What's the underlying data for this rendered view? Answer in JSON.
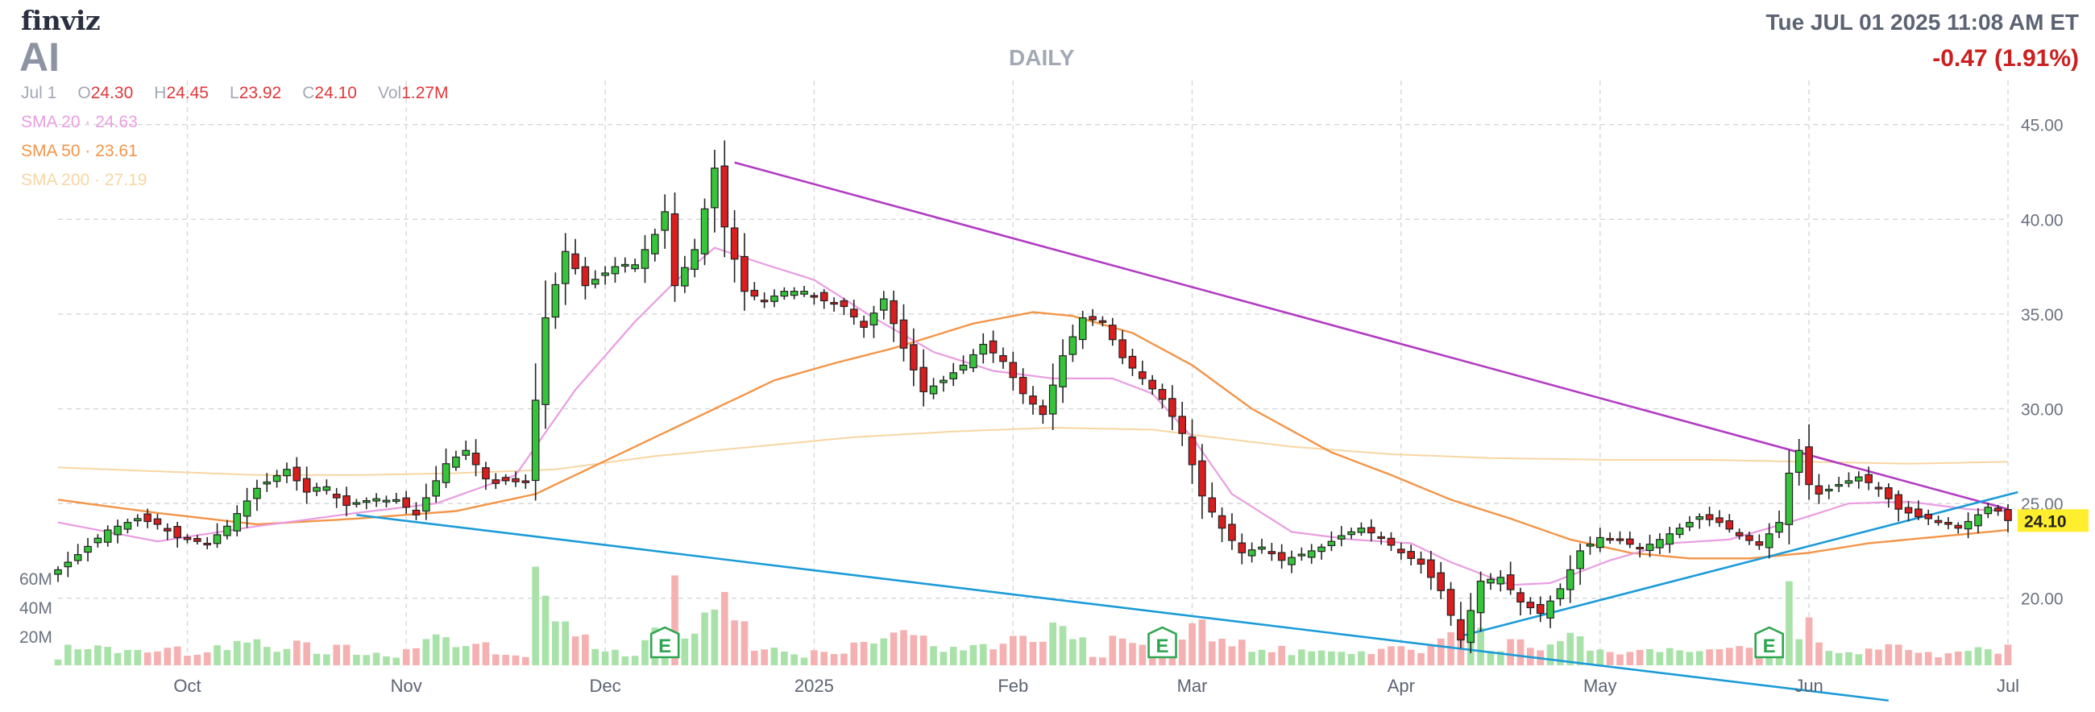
{
  "header": {
    "logo": "finviz",
    "ticker": "AI",
    "period": "DAILY",
    "datetime": "Tue JUL 01 2025 11:08 AM ET",
    "change": "-0.47 (1.91%)"
  },
  "ohlc": {
    "date": "Jul 1",
    "open_label": "O",
    "open": "24.30",
    "high_label": "H",
    "high": "24.45",
    "low_label": "L",
    "low": "23.92",
    "close_label": "C",
    "close": "24.10",
    "vol_label": "Vol",
    "vol": "1.27M"
  },
  "legend": {
    "sma20": "SMA 20 · 24.63",
    "sma50": "SMA 50 · 23.61",
    "sma200": "SMA 200 · 27.19"
  },
  "colors": {
    "up": "#36c43a",
    "down": "#d81e1e",
    "vol_up": "#a9e2a9",
    "vol_down": "#f5b1b1",
    "sma20": "#e99de0",
    "sma50": "#f39548",
    "sma200": "#f7d6a3",
    "trend_upper": "#b23bc3",
    "trend_lower": "#1a9bd8",
    "earnings": "#2da650",
    "last_price_bg": "#ffee2d",
    "grid": "#d4d7dc"
  },
  "chart_data": {
    "type": "candlestick",
    "y_ticks": [
      "45.00",
      "40.00",
      "35.00",
      "30.00",
      "25.00",
      "20.00"
    ],
    "y_tick_values": [
      45,
      40,
      35,
      30,
      25,
      20
    ],
    "ylim": [
      16.8,
      46.9
    ],
    "last_price": "24.10",
    "last_price_value": 24.1,
    "volume_ticks": [
      "60M",
      "40M",
      "20M"
    ],
    "volume_tick_values": [
      60,
      40,
      20
    ],
    "volume_max": 70,
    "x_labels": [
      "Oct",
      "Nov",
      "Dec",
      "2025",
      "Feb",
      "Mar",
      "Apr",
      "May",
      "Jun",
      "Jul"
    ],
    "x_label_index": [
      13,
      35,
      55,
      76,
      96,
      114,
      135,
      155,
      176,
      196
    ],
    "earnings_marker": "E",
    "earnings_index": [
      61,
      111,
      172
    ],
    "n_days": 197,
    "ohlc_points": [
      [
        0,
        21.5
      ],
      [
        2,
        22.3
      ],
      [
        5,
        23.6
      ],
      [
        8,
        24.2
      ],
      [
        10,
        23.9
      ],
      [
        12,
        23.2
      ],
      [
        15,
        22.9
      ],
      [
        17,
        23.8
      ],
      [
        20,
        25.8
      ],
      [
        23,
        26.8
      ],
      [
        25,
        25.6
      ],
      [
        27,
        25.7
      ],
      [
        29,
        24.9
      ],
      [
        31,
        25.1
      ],
      [
        34,
        25.2
      ],
      [
        36,
        24.4
      ],
      [
        39,
        27.1
      ],
      [
        41,
        27.8
      ],
      [
        43,
        26.3
      ],
      [
        45,
        26.2
      ],
      [
        47,
        26.1
      ],
      [
        49,
        34.8
      ],
      [
        51,
        38.3
      ],
      [
        53,
        36.5
      ],
      [
        56,
        37.5
      ],
      [
        58,
        37.6
      ],
      [
        60,
        39.2
      ],
      [
        61,
        40.4
      ],
      [
        62,
        36.5
      ],
      [
        64,
        38.4
      ],
      [
        66,
        42.7
      ],
      [
        67,
        39.6
      ],
      [
        69,
        36.2
      ],
      [
        71,
        35.7
      ],
      [
        73,
        36.2
      ],
      [
        75,
        36.2
      ],
      [
        77,
        35.7
      ],
      [
        79,
        35.4
      ],
      [
        81,
        34.3
      ],
      [
        83,
        35.8
      ],
      [
        85,
        33.2
      ],
      [
        87,
        30.9
      ],
      [
        89,
        31.5
      ],
      [
        91,
        32.3
      ],
      [
        93,
        33.4
      ],
      [
        95,
        32.5
      ],
      [
        97,
        30.8
      ],
      [
        99,
        29.7
      ],
      [
        101,
        32.8
      ],
      [
        103,
        34.8
      ],
      [
        105,
        34.6
      ],
      [
        107,
        32.7
      ],
      [
        109,
        31.6
      ],
      [
        111,
        30.5
      ],
      [
        113,
        28.7
      ],
      [
        115,
        25.4
      ],
      [
        117,
        23.7
      ],
      [
        119,
        22.4
      ],
      [
        121,
        22.7
      ],
      [
        123,
        22.0
      ],
      [
        125,
        22.3
      ],
      [
        127,
        22.7
      ],
      [
        129,
        23.3
      ],
      [
        131,
        23.7
      ],
      [
        133,
        23.2
      ],
      [
        135,
        22.4
      ],
      [
        137,
        21.8
      ],
      [
        139,
        20.4
      ],
      [
        141,
        17.8
      ],
      [
        143,
        20.9
      ],
      [
        145,
        21.1
      ],
      [
        147,
        19.8
      ],
      [
        149,
        19.2
      ],
      [
        151,
        20.5
      ],
      [
        153,
        22.5
      ],
      [
        155,
        23.2
      ],
      [
        157,
        23.1
      ],
      [
        159,
        22.6
      ],
      [
        161,
        23.1
      ],
      [
        163,
        23.7
      ],
      [
        165,
        24.3
      ],
      [
        167,
        24.0
      ],
      [
        169,
        23.3
      ],
      [
        171,
        22.8
      ],
      [
        173,
        24.0
      ],
      [
        174,
        26.6
      ],
      [
        175,
        27.8
      ],
      [
        176,
        26.0
      ],
      [
        177,
        25.5
      ],
      [
        179,
        26.0
      ],
      [
        181,
        26.4
      ],
      [
        183,
        25.8
      ],
      [
        185,
        24.7
      ],
      [
        187,
        24.3
      ],
      [
        189,
        24.1
      ],
      [
        191,
        23.7
      ],
      [
        193,
        24.4
      ],
      [
        194,
        24.8
      ],
      [
        195,
        24.6
      ],
      [
        196,
        24.1
      ]
    ],
    "sma20_points": [
      [
        0,
        24.0
      ],
      [
        10,
        23.0
      ],
      [
        20,
        23.8
      ],
      [
        30,
        24.5
      ],
      [
        38,
        25.0
      ],
      [
        46,
        26.5
      ],
      [
        52,
        31.0
      ],
      [
        58,
        34.6
      ],
      [
        62,
        36.7
      ],
      [
        66,
        38.5
      ],
      [
        70,
        37.8
      ],
      [
        76,
        36.8
      ],
      [
        82,
        34.8
      ],
      [
        88,
        33.0
      ],
      [
        94,
        32.0
      ],
      [
        100,
        31.6
      ],
      [
        106,
        31.6
      ],
      [
        110,
        30.8
      ],
      [
        114,
        28.5
      ],
      [
        118,
        25.5
      ],
      [
        124,
        23.5
      ],
      [
        130,
        23.1
      ],
      [
        136,
        22.9
      ],
      [
        140,
        21.9
      ],
      [
        146,
        20.7
      ],
      [
        150,
        20.8
      ],
      [
        156,
        22.0
      ],
      [
        162,
        22.9
      ],
      [
        168,
        23.1
      ],
      [
        174,
        24.0
      ],
      [
        180,
        25.0
      ],
      [
        186,
        25.1
      ],
      [
        192,
        24.7
      ],
      [
        196,
        24.6
      ]
    ],
    "sma50_points": [
      [
        0,
        25.2
      ],
      [
        10,
        24.5
      ],
      [
        20,
        23.9
      ],
      [
        30,
        24.2
      ],
      [
        40,
        24.6
      ],
      [
        48,
        25.5
      ],
      [
        54,
        27.0
      ],
      [
        60,
        28.5
      ],
      [
        66,
        30.0
      ],
      [
        72,
        31.5
      ],
      [
        78,
        32.4
      ],
      [
        84,
        33.2
      ],
      [
        92,
        34.5
      ],
      [
        98,
        35.1
      ],
      [
        102,
        34.9
      ],
      [
        108,
        34.0
      ],
      [
        114,
        32.3
      ],
      [
        120,
        30.0
      ],
      [
        128,
        27.7
      ],
      [
        134,
        26.5
      ],
      [
        140,
        25.2
      ],
      [
        146,
        24.2
      ],
      [
        152,
        23.1
      ],
      [
        158,
        22.4
      ],
      [
        164,
        22.1
      ],
      [
        170,
        22.1
      ],
      [
        176,
        22.4
      ],
      [
        182,
        22.9
      ],
      [
        188,
        23.2
      ],
      [
        196,
        23.6
      ]
    ],
    "sma200_points": [
      [
        0,
        26.9
      ],
      [
        10,
        26.7
      ],
      [
        20,
        26.5
      ],
      [
        30,
        26.5
      ],
      [
        40,
        26.6
      ],
      [
        50,
        26.8
      ],
      [
        60,
        27.5
      ],
      [
        70,
        28.0
      ],
      [
        80,
        28.5
      ],
      [
        90,
        28.8
      ],
      [
        100,
        29.0
      ],
      [
        110,
        28.9
      ],
      [
        116,
        28.5
      ],
      [
        124,
        28.0
      ],
      [
        134,
        27.6
      ],
      [
        144,
        27.4
      ],
      [
        156,
        27.3
      ],
      [
        166,
        27.3
      ],
      [
        176,
        27.2
      ],
      [
        186,
        27.1
      ],
      [
        196,
        27.2
      ]
    ],
    "trendlines": [
      {
        "kind": "upper",
        "from": [
          68,
          43.0
        ],
        "to": [
          196,
          24.7
        ]
      },
      {
        "kind": "lower",
        "from": [
          30,
          24.4
        ],
        "to": [
          184,
          14.6
        ]
      },
      {
        "kind": "lower",
        "from": [
          141,
          18.0
        ],
        "to": [
          197,
          25.6
        ]
      }
    ]
  }
}
